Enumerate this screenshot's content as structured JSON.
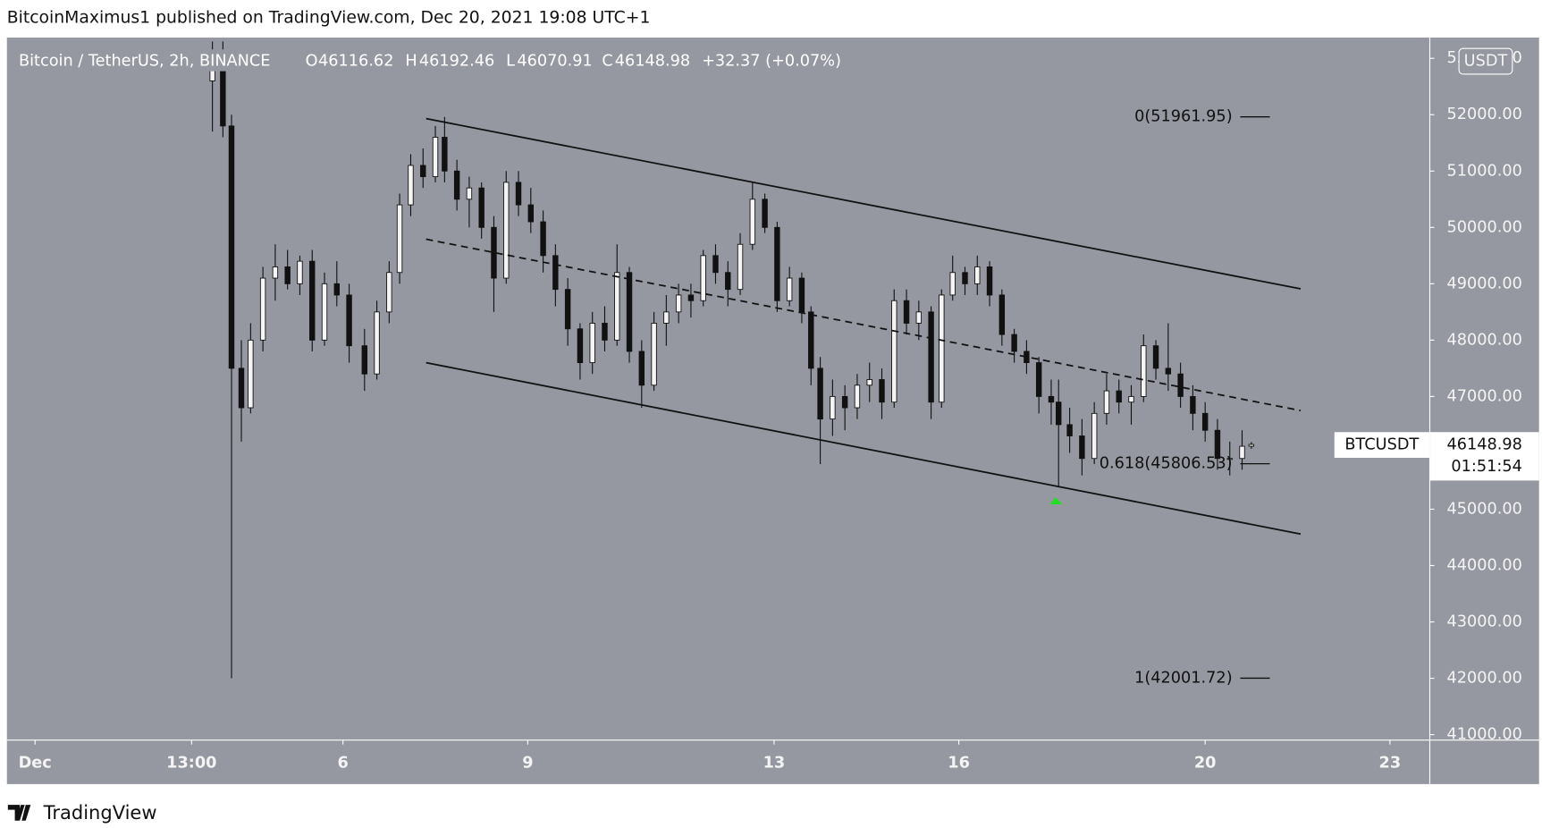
{
  "header": {
    "published": "BitcoinMaximus1 published on TradingView.com, Dec 20, 2021 19:08 UTC+1"
  },
  "footer": {
    "brand": "TradingView"
  },
  "chart_data": {
    "type": "candlestick",
    "symbol": "Bitcoin / TetherUS, 2h, BINANCE",
    "ohlc_letters": [
      "O",
      "H",
      "L",
      "C"
    ],
    "change": "+32.37 (+0.07%)",
    "ticker": "BTCUSDT",
    "countdown": "01:51:54",
    "currency": "USDT",
    "up_color": "#f5f5f5",
    "down_color": "#111111",
    "x": [
      3.88,
      4.05,
      4.19,
      4.35,
      4.5,
      4.7,
      4.9,
      5.1,
      5.3,
      5.5,
      5.7,
      5.9,
      6.1,
      6.35,
      6.55,
      6.75,
      6.92,
      7.1,
      7.3,
      7.5,
      7.65,
      7.85,
      8.05,
      8.25,
      8.45,
      8.65,
      8.85,
      9.05,
      9.25,
      9.45,
      9.65,
      9.85,
      10.05,
      10.25,
      10.45,
      10.65,
      10.85,
      11.05,
      11.25,
      11.45,
      11.65,
      11.85,
      12.05,
      12.25,
      12.45,
      12.65,
      12.85,
      13.05,
      13.25,
      13.45,
      13.6,
      13.75,
      13.95,
      14.15,
      14.35,
      14.55,
      14.75,
      14.95,
      15.15,
      15.35,
      15.55,
      15.72,
      15.9,
      16.1,
      16.3,
      16.5,
      16.7,
      16.9,
      17.1,
      17.3,
      17.5,
      17.62,
      17.8,
      18.0,
      18.2,
      18.4,
      18.6,
      18.8,
      19.0,
      19.2,
      19.4,
      19.6,
      19.8,
      20.0,
      20.2,
      20.4,
      20.6,
      20.75
    ],
    "open": [
      52600,
      53000,
      51800,
      47500,
      46800,
      48000,
      49100,
      49300,
      49000,
      49400,
      48000,
      49000,
      48800,
      47900,
      47400,
      48500,
      49200,
      50400,
      51100,
      50900,
      51600,
      51000,
      50500,
      50700,
      50000,
      49100,
      50800,
      50400,
      50100,
      49500,
      48900,
      48200,
      47600,
      48300,
      48000,
      49200,
      47800,
      47200,
      48300,
      48500,
      48800,
      48700,
      49500,
      49200,
      48900,
      49700,
      50500,
      50000,
      48700,
      49100,
      48500,
      47500,
      46600,
      47000,
      46800,
      47200,
      47300,
      46900,
      48700,
      48300,
      48500,
      46900,
      48800,
      49200,
      49000,
      49300,
      48800,
      48100,
      47800,
      47600,
      47000,
      46900,
      46500,
      46300,
      45900,
      46700,
      47100,
      46900,
      47000,
      47900,
      47500,
      47400,
      47000,
      46700,
      46400,
      45900,
      45900,
      46116.62
    ],
    "high": [
      53300,
      53300,
      52000,
      48000,
      48300,
      49300,
      49700,
      49600,
      49500,
      49600,
      49200,
      49400,
      49000,
      48200,
      48700,
      49400,
      50600,
      51300,
      51400,
      51800,
      51960,
      51200,
      50900,
      50800,
      50200,
      51000,
      51000,
      50700,
      50300,
      49700,
      49100,
      48300,
      48500,
      48600,
      49700,
      49300,
      48000,
      48500,
      48800,
      49000,
      49000,
      49600,
      49700,
      49400,
      49900,
      50800,
      50600,
      50100,
      49300,
      49200,
      48600,
      47700,
      47300,
      47200,
      47400,
      47600,
      47500,
      48900,
      48900,
      48700,
      48600,
      48900,
      49500,
      49300,
      49500,
      49400,
      48900,
      48200,
      48000,
      47700,
      47300,
      47300,
      46800,
      46600,
      46900,
      47400,
      47300,
      47200,
      48100,
      48000,
      48300,
      47600,
      47200,
      46900,
      46600,
      46200,
      46400,
      46192.46
    ],
    "low": [
      51700,
      51600,
      42000,
      46200,
      46700,
      47800,
      48700,
      48900,
      48800,
      47800,
      47900,
      48600,
      47600,
      47100,
      47300,
      48300,
      49000,
      50200,
      50700,
      50800,
      50800,
      50300,
      50000,
      49800,
      48500,
      49000,
      50200,
      49900,
      49200,
      48600,
      47900,
      47300,
      47400,
      47800,
      47900,
      47600,
      46800,
      47100,
      47900,
      48300,
      48400,
      48600,
      49000,
      48600,
      48800,
      49600,
      49900,
      48500,
      48600,
      48300,
      47200,
      45800,
      46300,
      46400,
      46600,
      46900,
      46600,
      46800,
      48100,
      48000,
      46600,
      46800,
      48700,
      48800,
      48800,
      48600,
      47900,
      47600,
      47400,
      46700,
      46500,
      45400,
      46000,
      45600,
      45800,
      46500,
      46700,
      46500,
      46900,
      47300,
      47100,
      46800,
      46400,
      46200,
      45700,
      45600,
      45700,
      46070.91
    ],
    "close": [
      53000,
      51800,
      47500,
      46800,
      48000,
      49100,
      49300,
      49000,
      49400,
      48000,
      49000,
      48800,
      47900,
      47400,
      48500,
      49200,
      50400,
      51100,
      50900,
      51600,
      51000,
      50500,
      50700,
      50000,
      49100,
      50800,
      50400,
      50100,
      49500,
      48900,
      48200,
      47600,
      48300,
      48000,
      49200,
      47800,
      47200,
      48300,
      48500,
      48800,
      48700,
      49500,
      49200,
      48900,
      49700,
      50500,
      50000,
      48700,
      49100,
      48500,
      47500,
      46600,
      47000,
      46800,
      47200,
      47300,
      46900,
      48700,
      48300,
      48500,
      46900,
      48800,
      49200,
      49000,
      49300,
      48800,
      48100,
      47800,
      47600,
      47000,
      46900,
      46500,
      46300,
      45900,
      46700,
      47100,
      46900,
      47000,
      47900,
      47500,
      47400,
      47000,
      46700,
      46400,
      45900,
      45900,
      46116.62,
      46148.98
    ],
    "channel": [
      {
        "style": "solid",
        "x": [
          7.35,
          21.55
        ],
        "y": [
          51930,
          48910
        ]
      },
      {
        "style": "dashed",
        "x": [
          7.35,
          21.55
        ],
        "y": [
          49790,
          46750
        ]
      },
      {
        "style": "solid",
        "x": [
          7.35,
          21.55
        ],
        "y": [
          47600,
          44560
        ]
      }
    ],
    "fib_levels": [
      {
        "label": "0(51961.95)",
        "value": 51961.95
      },
      {
        "label": "0.618(45806.53)",
        "value": 45806.53
      },
      {
        "label": "1(42001.72)",
        "value": 42001.72
      }
    ],
    "fib_x": [
      20.57,
      21.05
    ],
    "xlim": [
      0.543,
      23.64
    ],
    "xticks": [
      {
        "value": 1,
        "label": "Dec"
      },
      {
        "value": 3.5417,
        "label": "13:00"
      },
      6,
      9,
      13,
      16,
      20,
      23
    ],
    "ylim": [
      40912,
      53368
    ],
    "yticks": [
      {
        "value": 41000,
        "label": "41000.00"
      },
      {
        "value": 42000,
        "label": "42000.00"
      },
      {
        "value": 43000,
        "label": "43000.00"
      },
      {
        "value": 44000,
        "label": "44000.00"
      },
      {
        "value": 45000,
        "label": "45000.00"
      },
      {
        "value": 46000,
        "label": "46000.00"
      },
      {
        "value": 47000,
        "label": "47000.00"
      },
      {
        "value": 48000,
        "label": "48000.00"
      },
      {
        "value": 49000,
        "label": "49000.00"
      },
      {
        "value": 50000,
        "label": "50000.00"
      },
      {
        "value": 51000,
        "label": "51000.00"
      },
      {
        "value": 52000,
        "label": "52000.00"
      },
      {
        "value": 53000,
        "label": "53000.00"
      }
    ]
  }
}
